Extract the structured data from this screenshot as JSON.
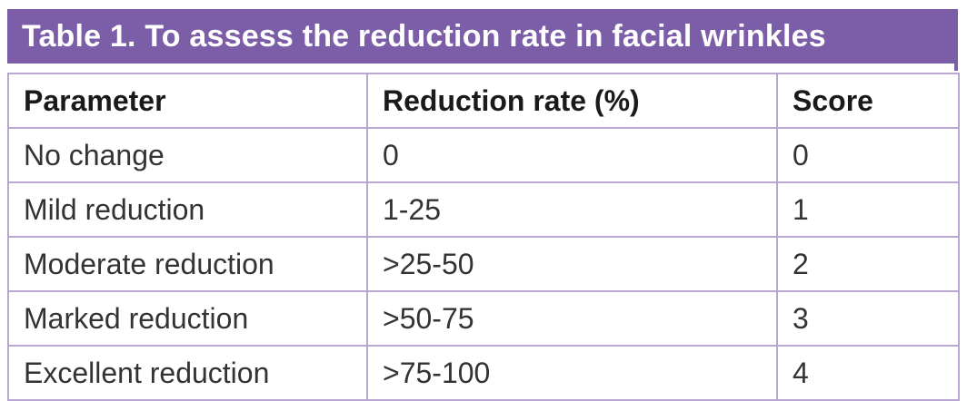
{
  "title": "Table 1. To assess the reduction rate in facial wrinkles",
  "colors": {
    "title_background": "#7b5ea7",
    "title_text": "#ffffff",
    "grid_lines": "#b9a6d3"
  },
  "table": {
    "headers": [
      "Parameter",
      "Reduction rate (%)",
      "Score"
    ],
    "rows": [
      [
        "No change",
        "0",
        "0"
      ],
      [
        "Mild reduction",
        "1-25",
        "1"
      ],
      [
        "Moderate reduction",
        ">25-50",
        "2"
      ],
      [
        "Marked reduction",
        ">50-75",
        "3"
      ],
      [
        "Excellent reduction",
        ">75-100",
        "4"
      ]
    ]
  }
}
